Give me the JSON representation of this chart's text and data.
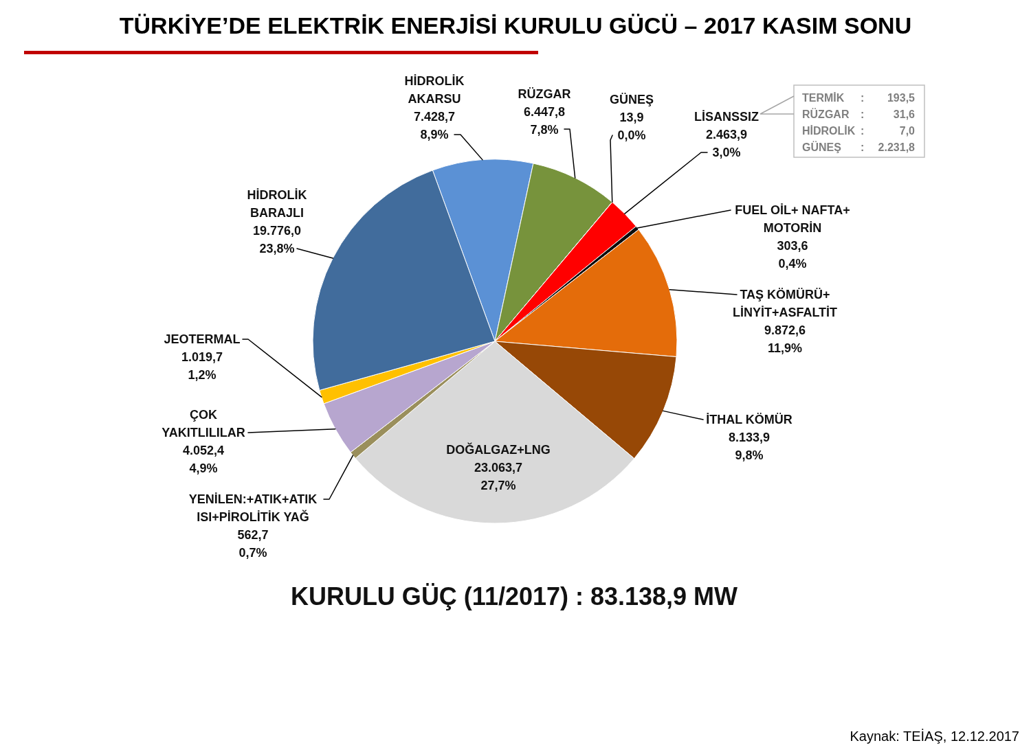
{
  "chart_data": {
    "type": "pie",
    "title": "TÜRKİYE’DE ELEKTRİK ENERJİSİ KURULU GÜCÜ – 2017 KASIM SONU",
    "categories": [
      "HİDROLİK\nAKARSU",
      "RÜZGAR",
      "GÜNEŞ",
      "LİSANSSIZ",
      "FUEL OİL+ NAFTA+\nMOTORİN",
      "TAŞ KÖMÜRÜ+\nLİNYİT+ASFALTİT",
      "İTHAL KÖMÜR",
      "DOĞALGAZ+LNG",
      "YENİLEN:+ATIK+ATIK\nISI+PİROLİTİK YAĞ",
      "ÇOK\nYAKITLILILAR",
      "JEOTERMAL",
      "HİDROLİK\nBARAJLI"
    ],
    "values": [
      7428.7,
      6447.8,
      13.9,
      2463.9,
      303.6,
      9872.6,
      8133.9,
      23063.7,
      562.7,
      4052.4,
      1019.7,
      19776.0
    ],
    "colors": [
      "#5b91d5",
      "#77933c",
      "#ffff00",
      "#ff0000",
      "#0d0d0d",
      "#e46c0a",
      "#974806",
      "#d9d9d9",
      "#9a8f5c",
      "#b7a6cf",
      "#ffc000",
      "#416c9c"
    ],
    "value_labels": [
      "7.428,7\n8,9%",
      "6.447,8\n7,8%",
      "13,9\n0,0%",
      "2.463,9\n3,0%",
      "303,6\n0,4%",
      "9.872,6\n11,9%",
      "8.133,9\n9,8%",
      "23.063,7\n27,7%",
      "562,7\n0,7%",
      "4.052,4\n4,9%",
      "1.019,7\n1,2%",
      "19.776,0\n23,8%"
    ],
    "annotations": [
      "KURULU GÜÇ (11/2017) : 83.138,9 MW",
      "TERMİK : 193,5",
      "RÜZGAR : 31,6",
      "HİDROLİK : 7,0",
      "GÜNEŞ : 2.231,8",
      "Kaynak: TEİAŞ, 12.12.2017"
    ]
  }
}
